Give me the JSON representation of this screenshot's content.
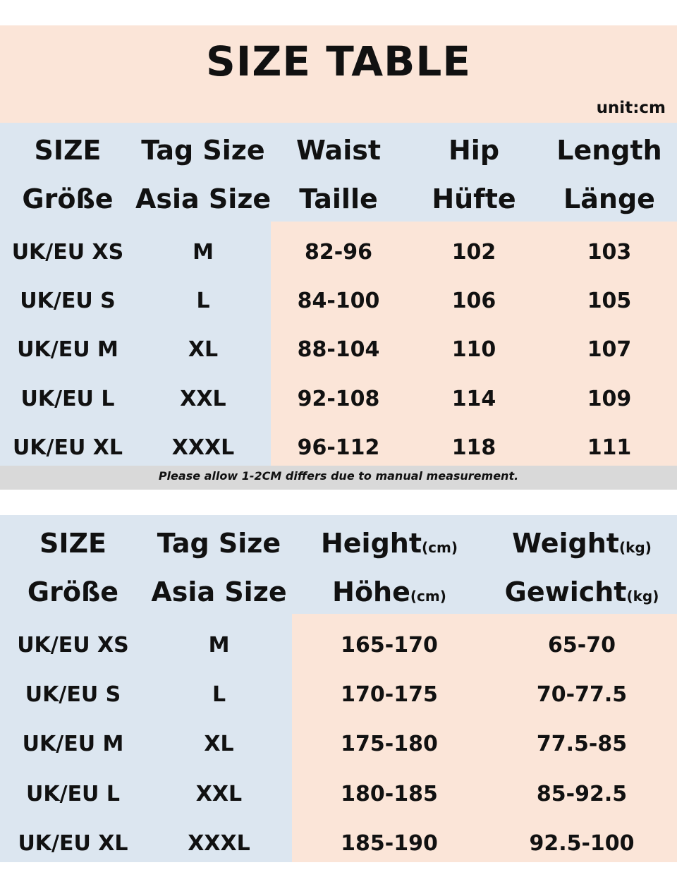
{
  "title": "SIZE TABLE",
  "unit": "unit:cm",
  "note": "Please allow 1-2CM differs due to manual measurement.",
  "table1": {
    "headers": [
      {
        "line1": "SIZE",
        "line2": "Größe"
      },
      {
        "line1": "Tag Size",
        "line2": "Asia Size"
      },
      {
        "line1": "Waist",
        "line2": "Taille"
      },
      {
        "line1": "Hip",
        "line2": "Hüfte"
      },
      {
        "line1": "Length",
        "line2": "Länge"
      }
    ],
    "rows": [
      [
        "UK/EU XS",
        "M",
        "82-96",
        "102",
        "103"
      ],
      [
        "UK/EU S",
        "L",
        "84-100",
        "106",
        "105"
      ],
      [
        "UK/EU M",
        "XL",
        "88-104",
        "110",
        "107"
      ],
      [
        "UK/EU L",
        "XXL",
        "92-108",
        "114",
        "109"
      ],
      [
        "UK/EU XL",
        "XXXL",
        "96-112",
        "118",
        "111"
      ]
    ]
  },
  "table2": {
    "headers": [
      {
        "line1": "SIZE",
        "line2": "Größe"
      },
      {
        "line1": "Tag Size",
        "line2": "Asia Size"
      },
      {
        "line1": "Height",
        "line1_sub": "(cm)",
        "line2": "Höhe",
        "line2_sub": "(cm)"
      },
      {
        "line1": "Weight",
        "line1_sub": "(kg)",
        "line2": "Gewicht",
        "line2_sub": "(kg)"
      }
    ],
    "rows": [
      [
        "UK/EU XS",
        "M",
        "165-170",
        "65-70"
      ],
      [
        "UK/EU S",
        "L",
        "170-175",
        "70-77.5"
      ],
      [
        "UK/EU M",
        "XL",
        "175-180",
        "77.5-85"
      ],
      [
        "UK/EU L",
        "XXL",
        "180-185",
        "85-92.5"
      ],
      [
        "UK/EU XL",
        "XXXL",
        "185-190",
        "92.5-100"
      ]
    ]
  }
}
